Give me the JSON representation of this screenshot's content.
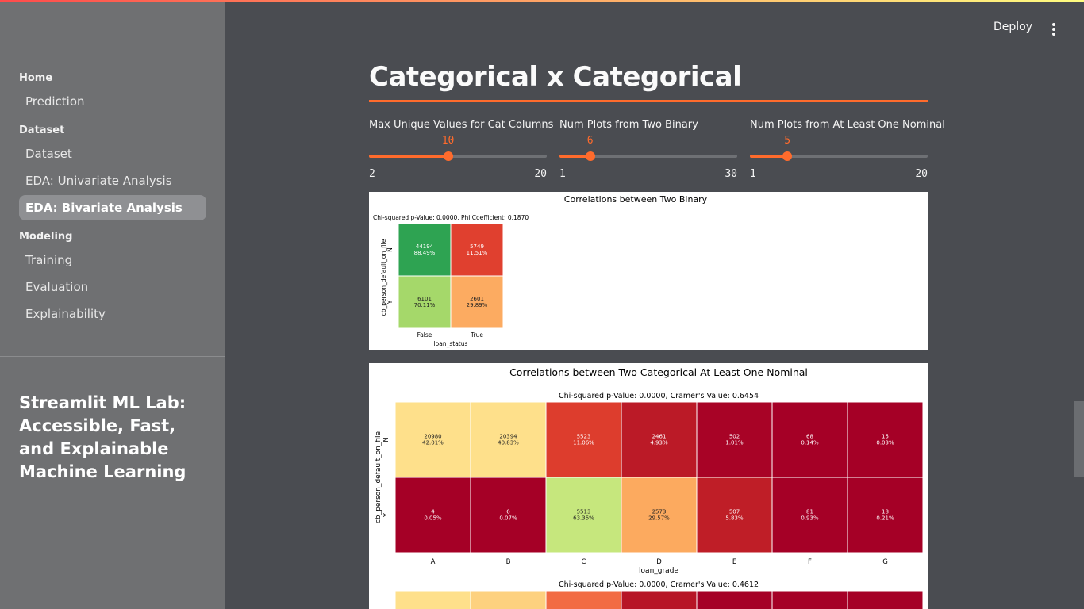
{
  "header": {
    "deploy_label": "Deploy",
    "menu_icon": "vertical-ellipsis-icon"
  },
  "sidebar": {
    "sections": [
      {
        "label": "Home",
        "items": [
          {
            "label": "Prediction",
            "active": false
          }
        ]
      },
      {
        "label": "Dataset",
        "items": [
          {
            "label": "Dataset",
            "active": false
          },
          {
            "label": "EDA: Univariate Analysis",
            "active": false
          },
          {
            "label": "EDA: Bivariate Analysis",
            "active": true
          }
        ]
      },
      {
        "label": "Modeling",
        "items": [
          {
            "label": "Training",
            "active": false
          },
          {
            "label": "Evaluation",
            "active": false
          },
          {
            "label": "Explainability",
            "active": false
          }
        ]
      }
    ],
    "app_title": "Streamlit ML Lab: Accessible, Fast, and Explainable Machine Learning"
  },
  "main": {
    "title": "Categorical x Categorical",
    "sliders": [
      {
        "label": "Max Unique Values for Cat Columns",
        "value": 10,
        "min": 2,
        "max": 20
      },
      {
        "label": "Num Plots from Two Binary",
        "value": 6,
        "min": 1,
        "max": 30
      },
      {
        "label": "Num Plots from At Least One Nominal",
        "value": 5,
        "min": 1,
        "max": 20
      }
    ]
  },
  "colors": {
    "accent": "#ff6b2c",
    "sidebar_bg": "#6f7072",
    "main_bg": "#4a4c51"
  },
  "chart_data": [
    {
      "type": "heatmap",
      "title": "Correlations between Two Binary",
      "subtitle": "Chi-squared p-Value: 0.0000, Phi Coefficient: 0.1870",
      "xlabel": "loan_status",
      "ylabel": "cb_person_default_on_file",
      "x": [
        "False",
        "True"
      ],
      "y": [
        "N",
        "Y"
      ],
      "counts": [
        [
          44194,
          5749
        ],
        [
          6101,
          2601
        ]
      ],
      "percents": [
        "88.49%",
        "11.51%",
        "70.11%",
        "29.89%"
      ],
      "colors": [
        [
          "#2ea352",
          "#e0402f"
        ],
        [
          "#a5d86a",
          "#fcab61"
        ]
      ]
    },
    {
      "type": "heatmap",
      "title": "Correlations between Two Categorical At Least One Nominal",
      "subtitle": "Chi-squared p-Value: 0.0000, Cramer's Value: 0.6454",
      "xlabel": "loan_grade",
      "ylabel": "cb_person_default_on_file",
      "x": [
        "A",
        "B",
        "C",
        "D",
        "E",
        "F",
        "G"
      ],
      "y": [
        "N",
        "Y"
      ],
      "counts": [
        [
          20980,
          20394,
          5523,
          2461,
          502,
          68,
          15
        ],
        [
          4,
          6,
          5513,
          2573,
          507,
          81,
          18
        ]
      ],
      "percents": [
        [
          "42.01%",
          "40.83%",
          "11.06%",
          "4.93%",
          "1.01%",
          "0.14%",
          "0.03%"
        ],
        [
          "0.05%",
          "0.07%",
          "63.35%",
          "29.57%",
          "5.83%",
          "0.93%",
          "0.21%"
        ]
      ],
      "colors": [
        [
          "#fee08b",
          "#fee08b",
          "#dd3d2d",
          "#bb1a27",
          "#a80326",
          "#a50026",
          "#a50026"
        ],
        [
          "#a50026",
          "#a50026",
          "#c6e77d",
          "#fcaa5f",
          "#bf1e27",
          "#a50026",
          "#a50026"
        ]
      ],
      "next_subtitle": "Chi-squared p-Value: 0.0000, Cramer's Value: 0.4612",
      "next_colors": [
        "#fee08b",
        "#fdd17f",
        "#f26b43",
        "#b71526",
        "#a50026",
        "#a50026",
        "#a50026"
      ]
    }
  ]
}
